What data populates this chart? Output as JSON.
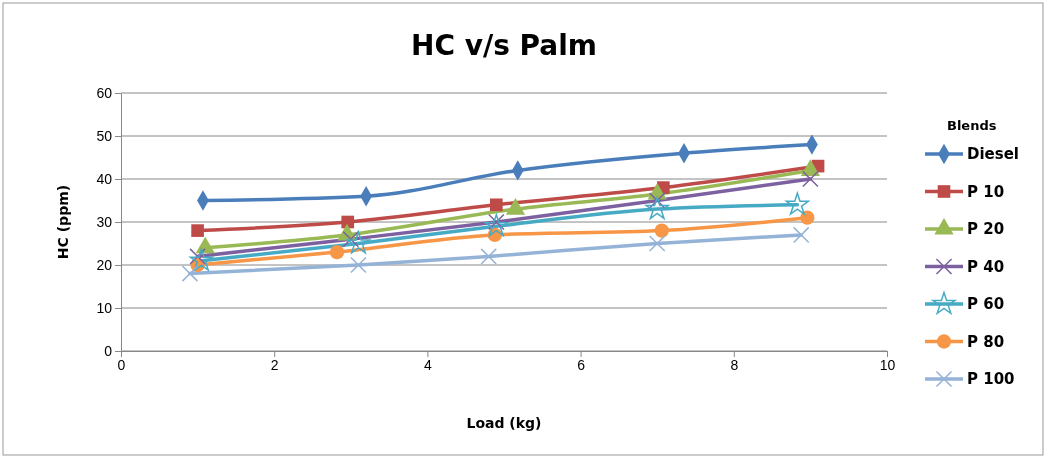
{
  "chart_data": {
    "type": "line",
    "title": "HC v/s Palm",
    "xlabel": "Load (kg)",
    "ylabel": "HC (ppm)",
    "legend_title": "Blends",
    "xlim": [
      0,
      10
    ],
    "xticks": [
      0,
      2,
      4,
      6,
      8,
      10
    ],
    "ylim": [
      0,
      60
    ],
    "yticks": [
      0,
      10,
      20,
      30,
      40,
      50,
      60
    ],
    "grid": "y",
    "legend": "right",
    "series": [
      {
        "name": "Diesel",
        "color": "#4a7ebb",
        "marker": "diamond",
        "x": [
          1.07,
          3.2,
          5.18,
          7.35,
          9.02
        ],
        "values": [
          35,
          36,
          42,
          46,
          48
        ]
      },
      {
        "name": "P 10",
        "color": "#be4b48",
        "marker": "square",
        "x": [
          1.0,
          2.96,
          4.9,
          7.08,
          9.1
        ],
        "values": [
          28,
          30,
          34,
          38,
          43
        ]
      },
      {
        "name": "P 20",
        "color": "#98b954",
        "marker": "triangle",
        "x": [
          1.1,
          2.95,
          5.15,
          7.0,
          9.0
        ],
        "values": [
          24,
          27,
          33,
          36.5,
          42
        ]
      },
      {
        "name": "P 40",
        "color": "#7d60a0",
        "marker": "cross",
        "x": [
          1.0,
          3.0,
          4.9,
          7.0,
          9.0
        ],
        "values": [
          22,
          26,
          30,
          35,
          40
        ]
      },
      {
        "name": "P 60",
        "color": "#46aac5",
        "marker": "star",
        "x": [
          1.05,
          3.1,
          4.9,
          7.0,
          8.83
        ],
        "values": [
          21,
          25,
          29,
          33,
          34
        ]
      },
      {
        "name": "P 80",
        "color": "#f79646",
        "marker": "circle",
        "x": [
          1.0,
          2.82,
          4.88,
          7.06,
          8.96
        ],
        "values": [
          20,
          23,
          27,
          28,
          31
        ]
      },
      {
        "name": "P 100",
        "color": "#95b3d7",
        "marker": "cross",
        "x": [
          0.9,
          3.1,
          4.8,
          7.0,
          8.88
        ],
        "values": [
          18,
          20,
          22,
          25,
          27
        ]
      }
    ]
  }
}
